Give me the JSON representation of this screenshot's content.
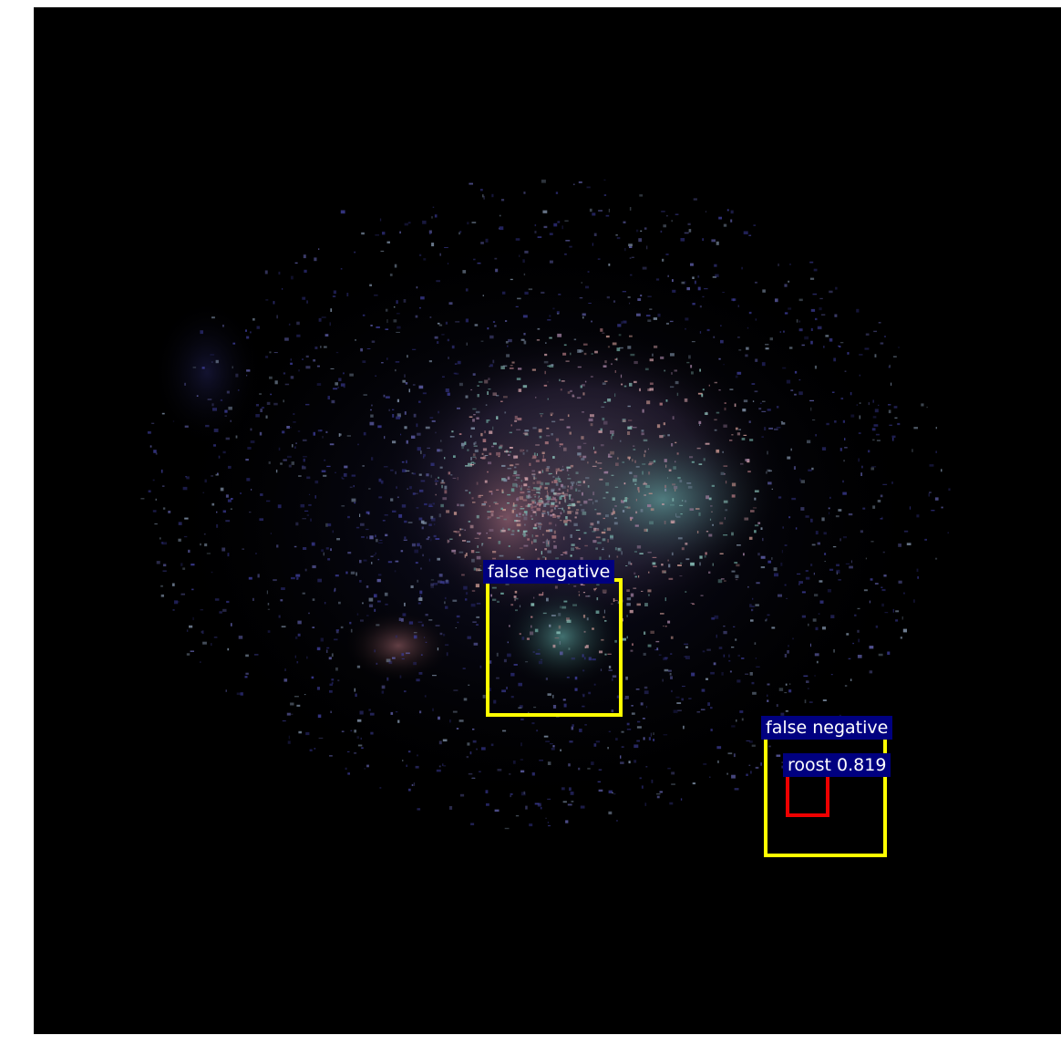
{
  "colors": {
    "background": "#000000",
    "false_negative_box": "#ffff00",
    "detection_box": "#ee0000",
    "label_background": "#000080"
  },
  "detections": [
    {
      "label": "false negative",
      "kind": "false_negative"
    },
    {
      "label": "false negative",
      "kind": "false_negative"
    },
    {
      "label": "roost 0.819",
      "kind": "prediction"
    }
  ]
}
